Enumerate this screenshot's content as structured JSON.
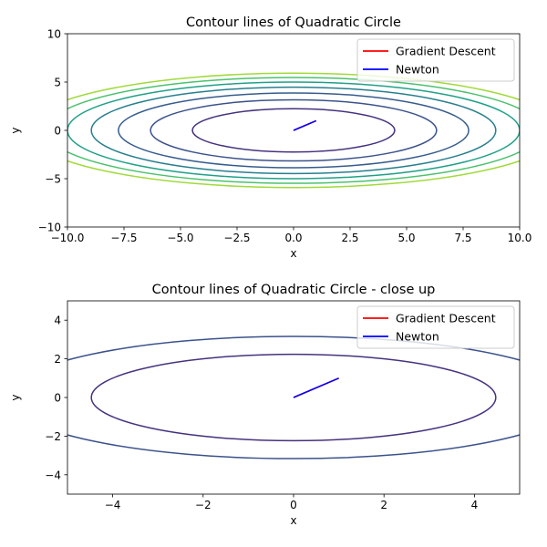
{
  "chart_data": [
    {
      "type": "line",
      "title": "Contour lines of Quadratic Circle",
      "xlabel": "x",
      "ylabel": "y",
      "xlim": [
        -10,
        10
      ],
      "ylim": [
        -10,
        10
      ],
      "xticks": [
        -10.0,
        -7.5,
        -5.0,
        -2.5,
        0.0,
        2.5,
        5.0,
        7.5,
        10.0
      ],
      "xtick_labels": [
        "−10.0",
        "−7.5",
        "−5.0",
        "−2.5",
        "0.0",
        "2.5",
        "5.0",
        "7.5",
        "10.0"
      ],
      "yticks": [
        -10,
        -5,
        0,
        5,
        10
      ],
      "ytick_labels": [
        "−10",
        "−5",
        "0",
        "5",
        "10"
      ],
      "contour_levels": [
        20,
        40,
        60,
        80,
        100,
        120,
        140
      ],
      "contour_colors": [
        "#46327e",
        "#3b528b",
        "#365c8d",
        "#277f8e",
        "#1fa187",
        "#4ac16d",
        "#a0da39"
      ],
      "contour_function": "x^2 + 4*y^2",
      "legend": {
        "location": "upper right",
        "entries": [
          "Gradient Descent",
          "Newton"
        ]
      },
      "series": [
        {
          "name": "Gradient Descent",
          "color": "#ff0000",
          "x": [
            1,
            0
          ],
          "y": [
            1,
            0
          ]
        },
        {
          "name": "Newton",
          "color": "#0000ff",
          "x": [
            1,
            0
          ],
          "y": [
            1,
            0
          ]
        }
      ]
    },
    {
      "type": "line",
      "title": "Contour lines of Quadratic Circle - close up",
      "xlabel": "x",
      "ylabel": "y",
      "xlim": [
        -5,
        5
      ],
      "ylim": [
        -5,
        5
      ],
      "xticks": [
        -4,
        -2,
        0,
        2,
        4
      ],
      "xtick_labels": [
        "−4",
        "−2",
        "0",
        "2",
        "4"
      ],
      "yticks": [
        -4,
        -2,
        0,
        2,
        4
      ],
      "ytick_labels": [
        "−4",
        "−2",
        "0",
        "2",
        "4"
      ],
      "contour_levels": [
        20,
        40
      ],
      "contour_colors": [
        "#46327e",
        "#3b528b"
      ],
      "contour_function": "x^2 + 4*y^2",
      "legend": {
        "location": "upper right",
        "entries": [
          "Gradient Descent",
          "Newton"
        ]
      },
      "series": [
        {
          "name": "Gradient Descent",
          "color": "#ff0000",
          "x": [
            1,
            0
          ],
          "y": [
            1,
            0
          ]
        },
        {
          "name": "Newton",
          "color": "#0000ff",
          "x": [
            1,
            0
          ],
          "y": [
            1,
            0
          ]
        }
      ]
    }
  ]
}
